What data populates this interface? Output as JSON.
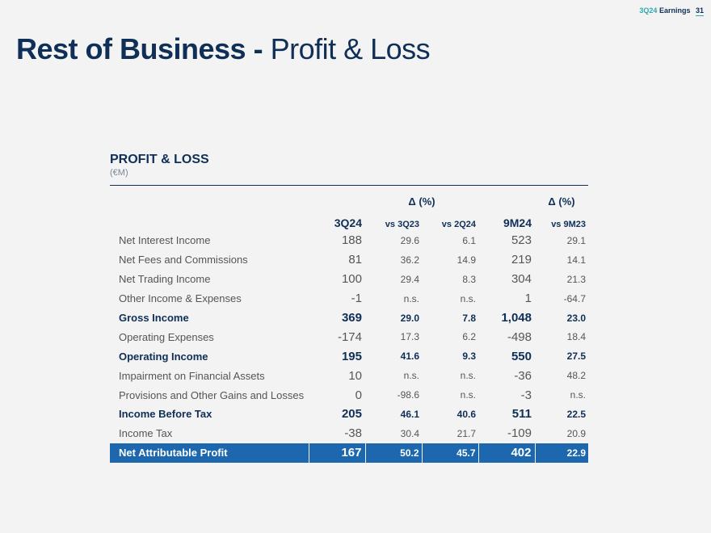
{
  "header": {
    "quarter": "3Q24",
    "earnings": "Earnings",
    "page_number": "31"
  },
  "title": {
    "bold": "Rest of Business -",
    "light": "Profit & Loss"
  },
  "section": {
    "title": "PROFIT & LOSS",
    "unit": "(€M)"
  },
  "table": {
    "delta_q_label": "Δ (%)",
    "delta_9m_label": "Δ (%)",
    "columns": [
      "3Q24",
      "vs 3Q23",
      "vs 2Q24",
      "9M24",
      "vs 9M23"
    ],
    "rows": [
      {
        "label": "Net Interest Income",
        "values": [
          "188",
          "29.6",
          "6.1",
          "523",
          "29.1"
        ]
      },
      {
        "label": "Net Fees and Commissions",
        "values": [
          "81",
          "36.2",
          "14.9",
          "219",
          "14.1"
        ]
      },
      {
        "label": "Net Trading Income",
        "values": [
          "100",
          "29.4",
          "8.3",
          "304",
          "21.3"
        ]
      },
      {
        "label": "Other Income & Expenses",
        "values": [
          "-1",
          "n.s.",
          "n.s.",
          "1",
          "-64.7"
        ]
      },
      {
        "label": "Gross Income",
        "values": [
          "369",
          "29.0",
          "7.8",
          "1,048",
          "23.0"
        ]
      },
      {
        "label": "Operating Expenses",
        "values": [
          "-174",
          "17.3",
          "6.2",
          "-498",
          "18.4"
        ]
      },
      {
        "label": "Operating Income",
        "values": [
          "195",
          "41.6",
          "9.3",
          "550",
          "27.5"
        ]
      },
      {
        "label": "Impairment on Financial Assets",
        "values": [
          "10",
          "n.s.",
          "n.s.",
          "-36",
          "48.2"
        ]
      },
      {
        "label": "Provisions and Other Gains and Losses",
        "values": [
          "0",
          "-98.6",
          "n.s.",
          "-3",
          "n.s."
        ]
      },
      {
        "label": "Income Before Tax",
        "values": [
          "205",
          "46.1",
          "40.6",
          "511",
          "22.5"
        ]
      },
      {
        "label": "Income Tax",
        "values": [
          "-38",
          "30.4",
          "21.7",
          "-109",
          "20.9"
        ]
      },
      {
        "label": "Net Attributable Profit",
        "values": [
          "167",
          "50.2",
          "45.7",
          "402",
          "22.9"
        ]
      }
    ]
  }
}
